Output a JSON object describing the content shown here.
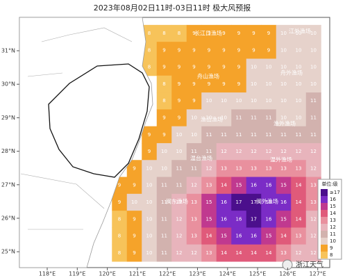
{
  "title": "2023年08月02日11时-03日11时 极大风预报",
  "lon_labels": [
    "118°E",
    "119°E",
    "120°E",
    "121°E",
    "122°E",
    "123°E",
    "124°E",
    "125°E",
    "126°E",
    "127°E"
  ],
  "lat_labels": [
    "31°N",
    "30°N",
    "29°N",
    "28°N",
    "27°N",
    "26°N",
    "25°N"
  ],
  "zones": [
    "长江口渔场",
    "江外渔场",
    "舟山渔场",
    "舟外渔场",
    "渔山渔场",
    "渔外渔场",
    "温台渔场",
    "温外渔场",
    "闽东渔场",
    "闽外渔场"
  ],
  "grid": [
    [
      null,
      null,
      8,
      8,
      8,
      9,
      9,
      9,
      9,
      9,
      9,
      10,
      10,
      10
    ],
    [
      null,
      null,
      8,
      9,
      9,
      9,
      9,
      9,
      9,
      9,
      9,
      10,
      10,
      10
    ],
    [
      null,
      null,
      8,
      9,
      9,
      9,
      9,
      9,
      9,
      10,
      10,
      10,
      10,
      10
    ],
    [
      null,
      null,
      null,
      8,
      9,
      9,
      9,
      9,
      9,
      10,
      10,
      10,
      10,
      10
    ],
    [
      null,
      null,
      null,
      8,
      9,
      9,
      10,
      10,
      10,
      10,
      10,
      10,
      10,
      11
    ],
    [
      null,
      null,
      null,
      9,
      9,
      10,
      10,
      10,
      11,
      11,
      11,
      10,
      10,
      11
    ],
    [
      null,
      null,
      9,
      9,
      10,
      10,
      11,
      11,
      11,
      11,
      11,
      11,
      11,
      11
    ],
    [
      null,
      null,
      9,
      10,
      10,
      11,
      11,
      12,
      12,
      12,
      12,
      12,
      12,
      12
    ],
    [
      null,
      9,
      10,
      10,
      11,
      11,
      12,
      13,
      13,
      13,
      13,
      13,
      13,
      12
    ],
    [
      9,
      9,
      10,
      11,
      11,
      12,
      13,
      14,
      15,
      16,
      16,
      15,
      14,
      13
    ],
    [
      9,
      10,
      10,
      11,
      12,
      13,
      15,
      16,
      17,
      17,
      16,
      16,
      14,
      13
    ],
    [
      8,
      9,
      10,
      11,
      12,
      13,
      15,
      16,
      16,
      17,
      16,
      15,
      14,
      12
    ],
    [
      8,
      9,
      10,
      11,
      12,
      13,
      14,
      15,
      16,
      16,
      15,
      14,
      13,
      12
    ],
    [
      8,
      9,
      10,
      11,
      12,
      12,
      13,
      14,
      14,
      14,
      14,
      13,
      12,
      12
    ]
  ],
  "legend": {
    "title": "单位:级",
    "items": [
      {
        "value": 17,
        "label": "≥17",
        "color": "#4b0f8c"
      },
      {
        "value": 16,
        "color": "#7b2cc6"
      },
      {
        "value": 15,
        "color": "#c0398f"
      },
      {
        "value": 14,
        "color": "#e05a7a"
      },
      {
        "value": 13,
        "color": "#e9909e"
      },
      {
        "value": 12,
        "color": "#e8b4bc"
      },
      {
        "value": 11,
        "color": "#d2b2ae"
      },
      {
        "value": 10,
        "color": "#e6d2cb"
      },
      {
        "value": 9,
        "color": "#f5a32a"
      },
      {
        "value": 8,
        "color": "#f7c35a"
      }
    ]
  },
  "watermark": "浙江天气"
}
